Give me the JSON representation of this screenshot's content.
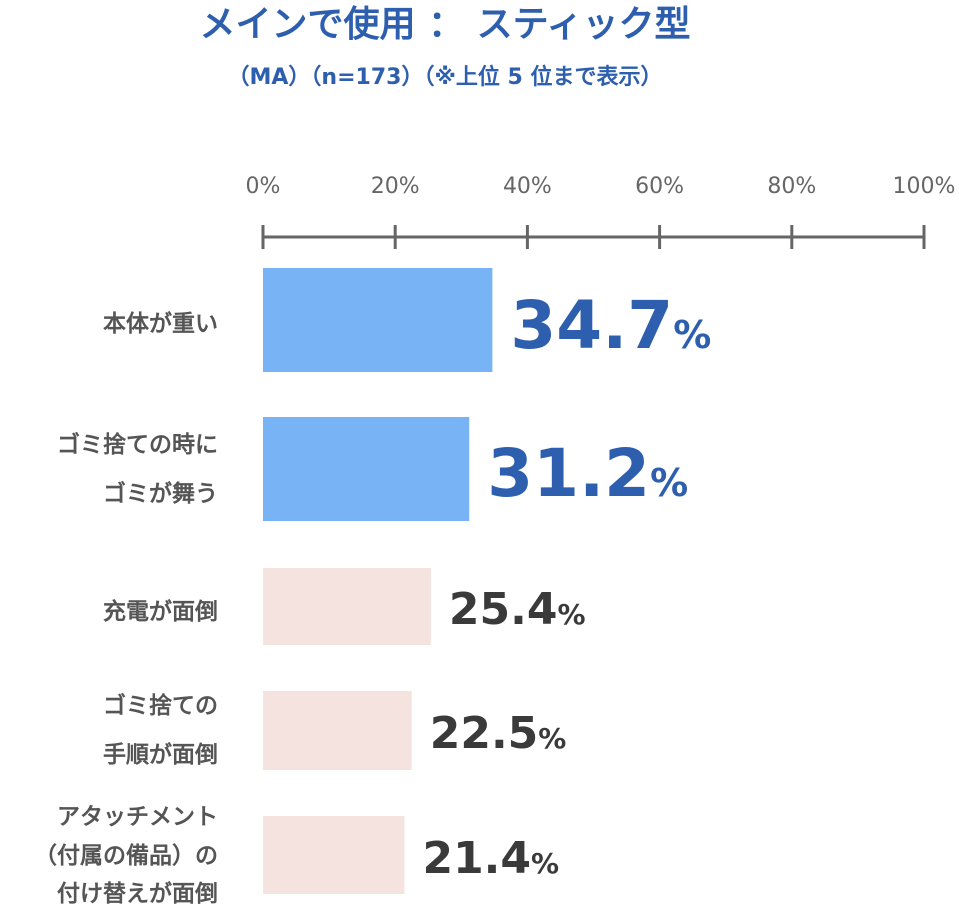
{
  "chart_data": {
    "type": "bar",
    "orientation": "horizontal",
    "title": "メインで使用 ： スティック型",
    "subtitle": "（MA）（n=173）（※上位 5 位まで表示）",
    "xlim": [
      0,
      100
    ],
    "ticks": [
      0,
      20,
      40,
      60,
      80,
      100
    ],
    "tick_labels": [
      "0%",
      "20%",
      "40%",
      "60%",
      "80%",
      "100%"
    ],
    "categories": [
      [
        "本体が重い"
      ],
      [
        "ゴミ捨ての時に",
        "ゴミが舞う"
      ],
      [
        "充電が面倒"
      ],
      [
        "ゴミ捨ての",
        "手順が面倒"
      ],
      [
        "アタッチメント",
        "（付属の備品）の",
        "付け替えが面倒"
      ]
    ],
    "values": [
      34.7,
      31.2,
      25.4,
      22.5,
      21.4
    ],
    "value_labels": [
      "34.7",
      "31.2",
      "25.4",
      "22.5",
      "21.4"
    ],
    "unit": "%",
    "highlight_top": 2,
    "colors": {
      "highlight_bar": "#78b4f5",
      "normal_bar": "#f4e3df",
      "axis": "#666666",
      "title": "#2d5fae"
    }
  }
}
